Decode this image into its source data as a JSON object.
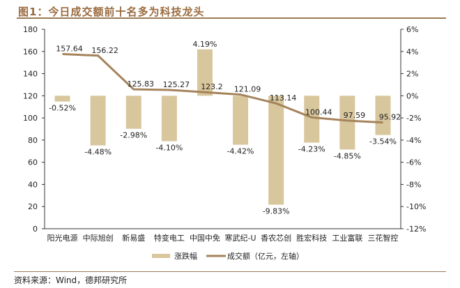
{
  "title": "图1：今日成交额前十名多为科技龙头",
  "source": "资料来源：Wind，德邦研究所",
  "colors": {
    "bar": "#d8c69d",
    "line": "#a5835b",
    "title": "#9a6b3e"
  },
  "chart_data": {
    "type": "bar+line",
    "categories": [
      "阳光电源",
      "中际旭创",
      "新易盛",
      "特变电工",
      "中国中免",
      "寒武纪-U",
      "香农芯创",
      "胜宏科技",
      "工业富联",
      "三花智控"
    ],
    "series": [
      {
        "name": "涨跌幅",
        "type": "bar",
        "axis": "right",
        "values": [
          -0.52,
          -4.48,
          -2.98,
          -4.1,
          4.19,
          -4.42,
          -9.83,
          -4.23,
          -4.85,
          -3.54
        ],
        "labels": [
          "-0.52%",
          "-4.48%",
          "-2.98%",
          "-4.10%",
          "4.19%",
          "-4.42%",
          "-9.83%",
          "-4.23%",
          "-4.85%",
          "-3.54%"
        ]
      },
      {
        "name": "成交额（亿元，左轴）",
        "type": "line",
        "axis": "left",
        "values": [
          157.64,
          156.22,
          125.83,
          125.27,
          123.2,
          121.09,
          113.14,
          100.44,
          97.59,
          95.92
        ],
        "labels": [
          "157.64",
          "156.22",
          "125.83",
          "125.27",
          "123.2",
          "121.09",
          "113.14",
          "100.44",
          "97.59",
          "95.92"
        ]
      }
    ],
    "y_left": {
      "range": [
        0,
        180
      ],
      "ticks": [
        "0",
        "20",
        "40",
        "60",
        "80",
        "100",
        "120",
        "140",
        "160",
        "180"
      ]
    },
    "y_right": {
      "range": [
        -12,
        6
      ],
      "ticks": [
        "-12%",
        "-10%",
        "-8%",
        "-6%",
        "-4%",
        "-2%",
        "0%",
        "2%",
        "4%",
        "6%"
      ]
    },
    "legend": {
      "position": "bottom",
      "items": [
        "涨跌幅",
        "成交额（亿元，左轴）"
      ]
    },
    "grid": false
  }
}
